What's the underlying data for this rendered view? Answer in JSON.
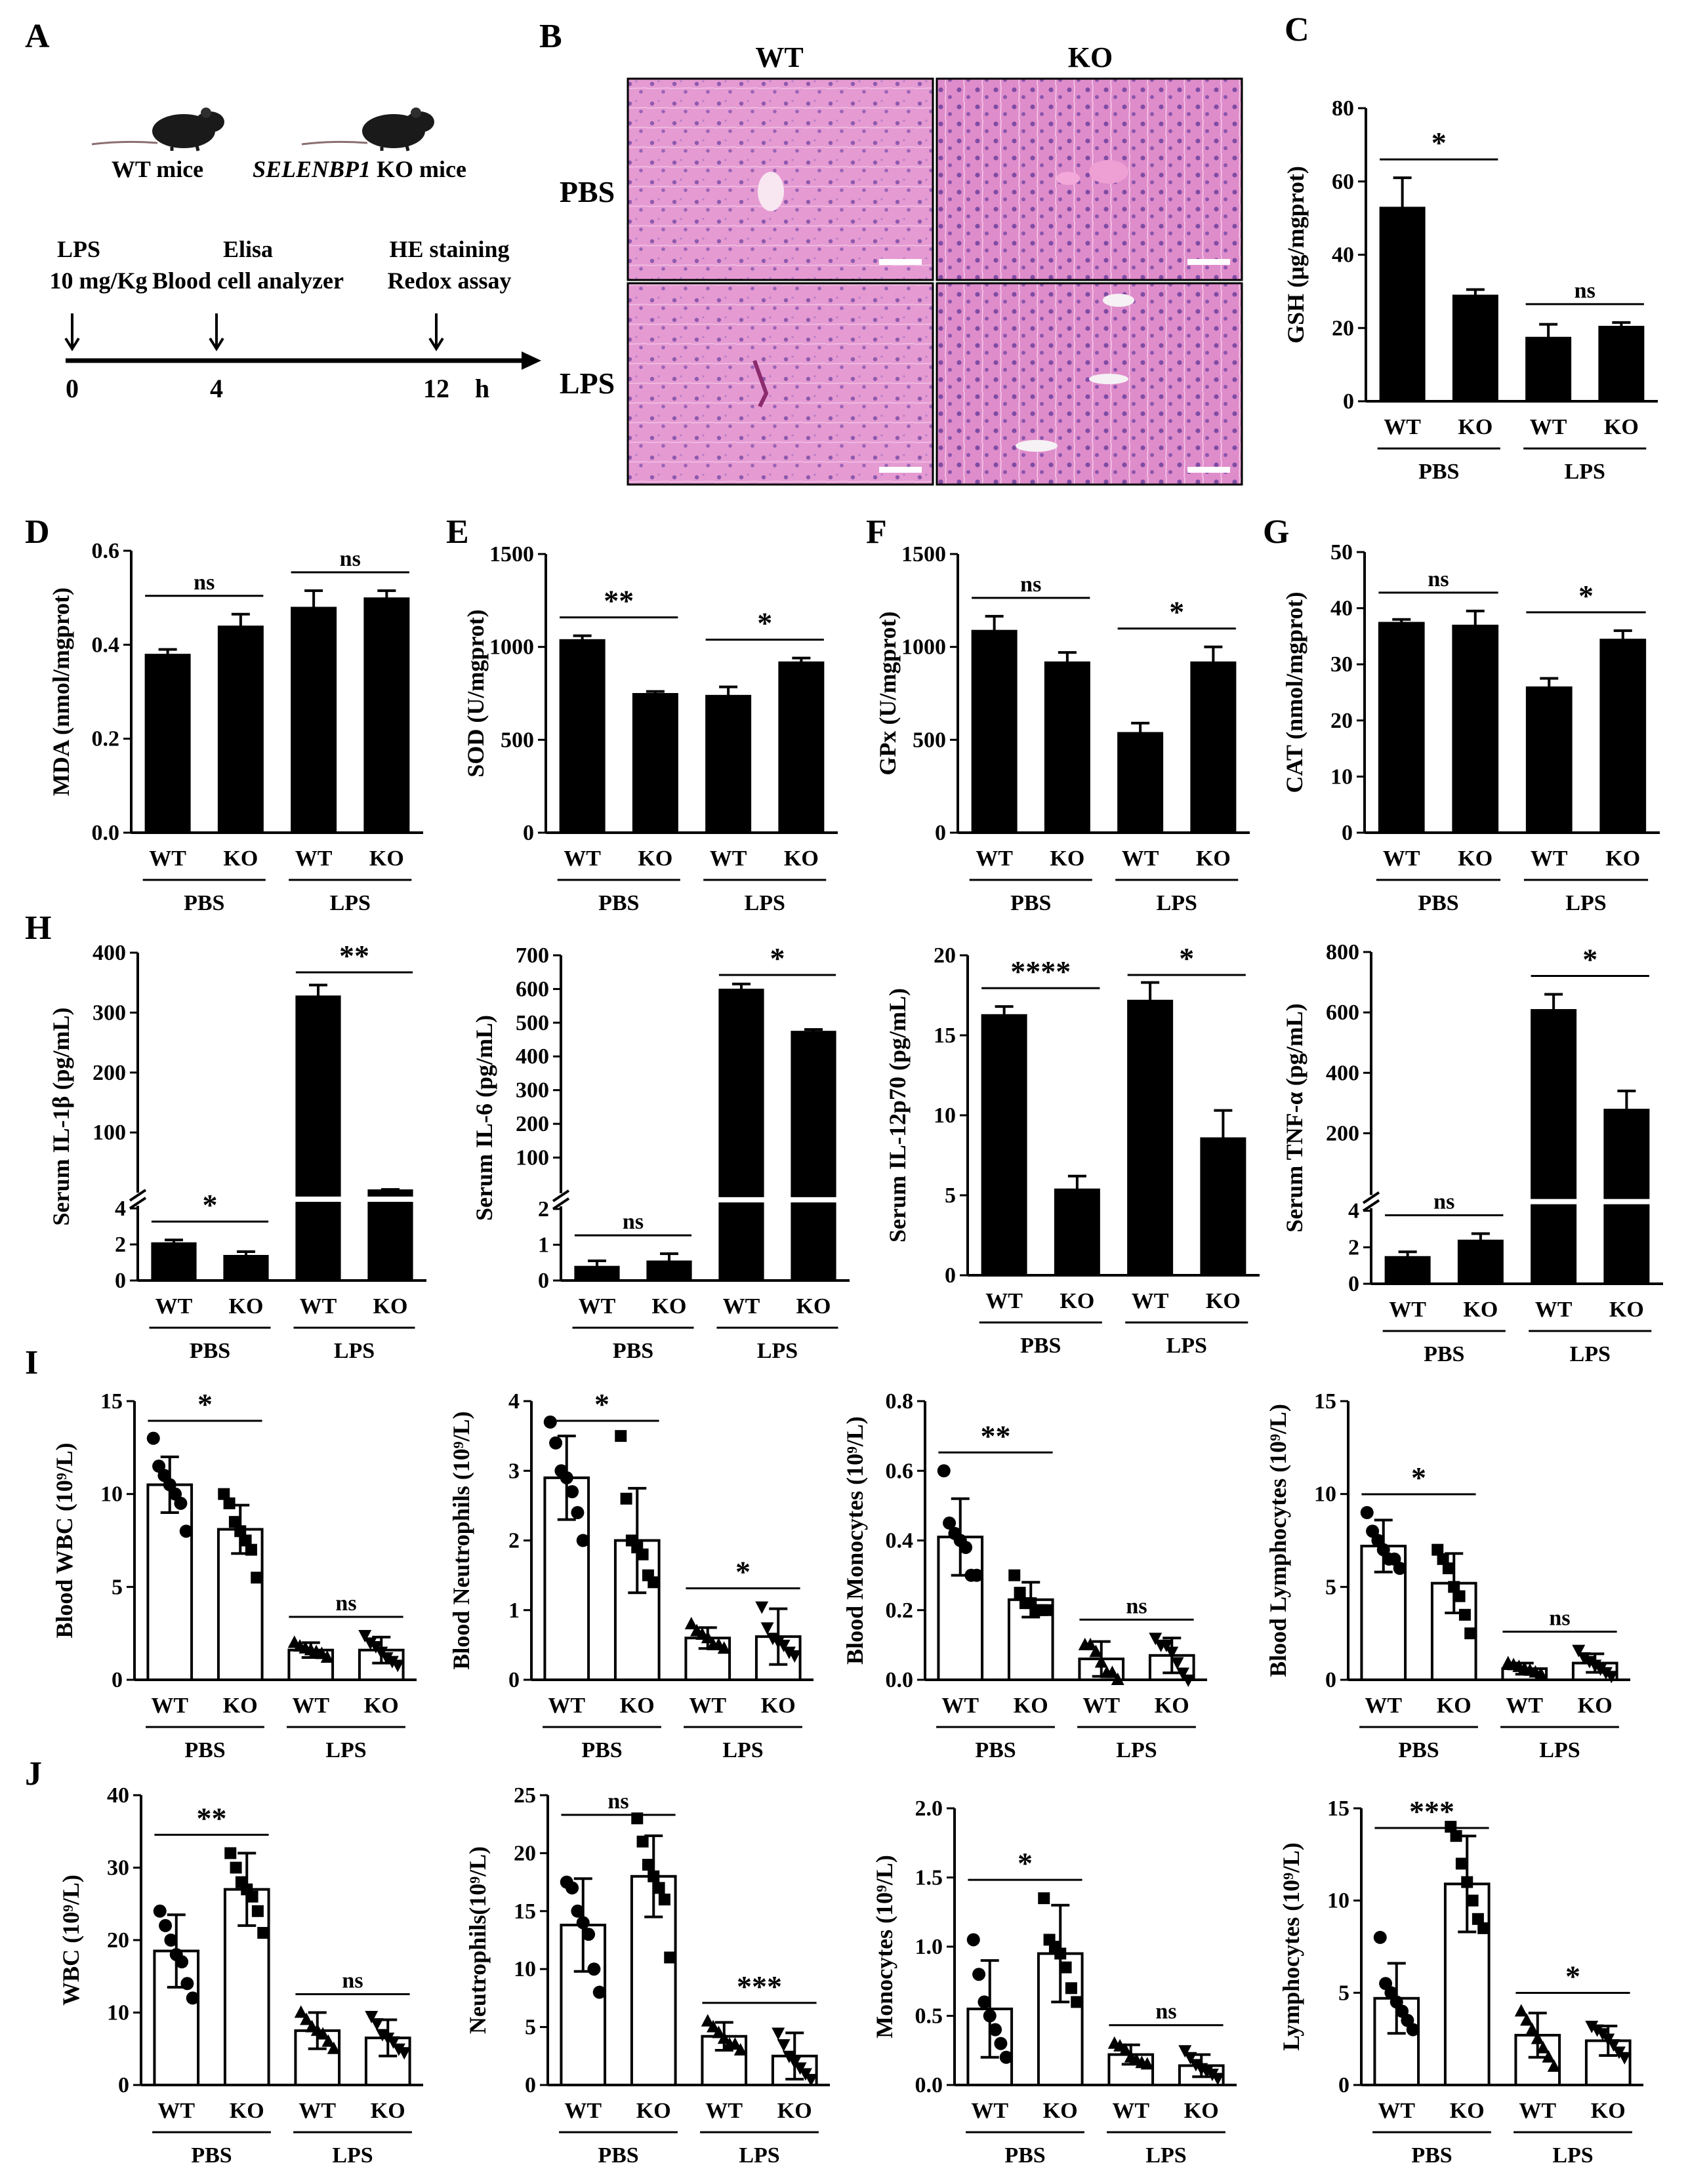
{
  "panel_letters": {
    "A": "A",
    "B": "B",
    "C": "C",
    "D": "D",
    "E": "E",
    "F": "F",
    "G": "G",
    "H": "H",
    "I": "I",
    "J": "J"
  },
  "panel_a": {
    "wt_mice": "WT mice",
    "ko_gene": "SELENBP1",
    "ko_suffix": " KO mice",
    "ev0_line1": "LPS",
    "ev0_line2": "10 mg/Kg",
    "ev4_line1": "Elisa",
    "ev4_line2": "Blood cell analyzer",
    "ev12_line1": "HE staining",
    "ev12_line2": "Redox assay",
    "tick_0": "0",
    "tick_4": "4",
    "tick_12": "12",
    "unit": "h"
  },
  "panel_b": {
    "col_wt": "WT",
    "col_ko": "KO",
    "row_pbs": "PBS",
    "row_lps": "LPS"
  },
  "chart_data": [
    {
      "id": "C",
      "type": "bar",
      "ylabel": "GSH (μg/mgprot)",
      "ylim": [
        0,
        80
      ],
      "yticks": [
        0,
        20,
        40,
        60,
        80
      ],
      "ytick_labels": [
        "0",
        "20",
        "40",
        "60",
        "80"
      ],
      "categories": [
        "WT",
        "KO",
        "WT",
        "KO"
      ],
      "groups": [
        "PBS",
        "LPS"
      ],
      "values": [
        53,
        29,
        17.5,
        20.5
      ],
      "errors": [
        8,
        1.5,
        3.5,
        1
      ],
      "annotations": [
        {
          "bars": [
            0,
            1
          ],
          "label": "*"
        },
        {
          "bars": [
            2,
            3
          ],
          "label": "ns"
        }
      ]
    },
    {
      "id": "D",
      "type": "bar",
      "ylabel": "MDA (nmol/mgprot)",
      "ylim": [
        0,
        0.6
      ],
      "yticks": [
        0,
        0.2,
        0.4,
        0.6
      ],
      "ytick_labels": [
        "0.0",
        "0.2",
        "0.4",
        "0.6"
      ],
      "categories": [
        "WT",
        "KO",
        "WT",
        "KO"
      ],
      "groups": [
        "PBS",
        "LPS"
      ],
      "values": [
        0.38,
        0.44,
        0.48,
        0.5
      ],
      "errors": [
        0.01,
        0.025,
        0.035,
        0.015
      ],
      "annotations": [
        {
          "bars": [
            0,
            1
          ],
          "label": "ns"
        },
        {
          "bars": [
            2,
            3
          ],
          "label": "ns"
        }
      ]
    },
    {
      "id": "E",
      "type": "bar",
      "ylabel": "SOD (U/mgprot)",
      "ylim": [
        0,
        1500
      ],
      "yticks": [
        0,
        500,
        1000,
        1500
      ],
      "ytick_labels": [
        "0",
        "500",
        "1000",
        "1500"
      ],
      "categories": [
        "WT",
        "KO",
        "WT",
        "KO"
      ],
      "groups": [
        "PBS",
        "LPS"
      ],
      "values": [
        1040,
        750,
        740,
        920
      ],
      "errors": [
        20,
        10,
        45,
        20
      ],
      "annotations": [
        {
          "bars": [
            0,
            1
          ],
          "label": "**"
        },
        {
          "bars": [
            2,
            3
          ],
          "label": "*"
        }
      ]
    },
    {
      "id": "F",
      "type": "bar",
      "ylabel": "GPx (U/mgprot)",
      "ylim": [
        0,
        1500
      ],
      "yticks": [
        0,
        500,
        1000,
        1500
      ],
      "ytick_labels": [
        "0",
        "500",
        "1000",
        "1500"
      ],
      "categories": [
        "WT",
        "KO",
        "WT",
        "KO"
      ],
      "groups": [
        "PBS",
        "LPS"
      ],
      "values": [
        1090,
        920,
        540,
        920
      ],
      "errors": [
        75,
        50,
        50,
        80
      ],
      "annotations": [
        {
          "bars": [
            0,
            1
          ],
          "label": "ns"
        },
        {
          "bars": [
            2,
            3
          ],
          "label": "*"
        }
      ]
    },
    {
      "id": "G",
      "type": "bar",
      "ylabel": "CAT (nmol/mgprot)",
      "ylim": [
        0,
        50
      ],
      "yticks": [
        0,
        10,
        20,
        30,
        40,
        50
      ],
      "ytick_labels": [
        "0",
        "10",
        "20",
        "30",
        "40",
        "50"
      ],
      "categories": [
        "WT",
        "KO",
        "WT",
        "KO"
      ],
      "groups": [
        "PBS",
        "LPS"
      ],
      "values": [
        37.5,
        37,
        26,
        34.5
      ],
      "errors": [
        0.5,
        2.5,
        1.5,
        1.5
      ],
      "annotations": [
        {
          "bars": [
            0,
            1
          ],
          "label": "ns"
        },
        {
          "bars": [
            2,
            3
          ],
          "label": "*"
        }
      ]
    },
    {
      "id": "H1",
      "type": "bar",
      "axis_break": true,
      "ylabel": "Serum IL-1β (pg/mL)",
      "low_range": [
        0,
        4
      ],
      "low_ticks": [
        0,
        2,
        4
      ],
      "high_range": [
        4,
        400
      ],
      "high_ticks": [
        100,
        200,
        300,
        400
      ],
      "categories": [
        "WT",
        "KO",
        "WT",
        "KO"
      ],
      "groups": [
        "PBS",
        "LPS"
      ],
      "values": [
        2.1,
        1.4,
        328,
        4.5
      ],
      "errors": [
        0.15,
        0.2,
        18,
        0.5
      ],
      "annotations": [
        {
          "bars": [
            0,
            1
          ],
          "label": "*"
        },
        {
          "bars": [
            2,
            3
          ],
          "label": "**"
        }
      ]
    },
    {
      "id": "H2",
      "type": "bar",
      "axis_break": true,
      "ylabel": "Serum IL-6 (pg/mL)",
      "low_range": [
        0,
        2
      ],
      "low_ticks": [
        0,
        1,
        2
      ],
      "high_range": [
        2,
        700
      ],
      "high_ticks": [
        100,
        200,
        300,
        400,
        500,
        600,
        700
      ],
      "categories": [
        "WT",
        "KO",
        "WT",
        "KO"
      ],
      "groups": [
        "PBS",
        "LPS"
      ],
      "values": [
        0.4,
        0.55,
        600,
        475
      ],
      "errors": [
        0.15,
        0.2,
        15,
        5
      ],
      "annotations": [
        {
          "bars": [
            0,
            1
          ],
          "label": "ns"
        },
        {
          "bars": [
            2,
            3
          ],
          "label": "*"
        }
      ]
    },
    {
      "id": "H3",
      "type": "bar",
      "ylabel": "Serum IL-12p70 (pg/mL)",
      "ylim": [
        0,
        20
      ],
      "yticks": [
        0,
        5,
        10,
        15,
        20
      ],
      "ytick_labels": [
        "0",
        "5",
        "10",
        "15",
        "20"
      ],
      "categories": [
        "WT",
        "KO",
        "WT",
        "KO"
      ],
      "groups": [
        "PBS",
        "LPS"
      ],
      "values": [
        16.3,
        5.4,
        17.2,
        8.6
      ],
      "errors": [
        0.5,
        0.8,
        1.1,
        1.7
      ],
      "annotations": [
        {
          "bars": [
            0,
            1
          ],
          "label": "****"
        },
        {
          "bars": [
            2,
            3
          ],
          "label": "*"
        }
      ]
    },
    {
      "id": "H4",
      "type": "bar",
      "axis_break": true,
      "ylabel": "Serum TNF-α (pg/mL)",
      "low_range": [
        0,
        4
      ],
      "low_ticks": [
        0,
        2,
        4
      ],
      "high_range": [
        4,
        800
      ],
      "high_ticks": [
        200,
        400,
        600,
        800
      ],
      "categories": [
        "WT",
        "KO",
        "WT",
        "KO"
      ],
      "groups": [
        "PBS",
        "LPS"
      ],
      "values": [
        1.5,
        2.4,
        610,
        280
      ],
      "errors": [
        0.25,
        0.35,
        50,
        60
      ],
      "annotations": [
        {
          "bars": [
            0,
            1
          ],
          "label": "ns"
        },
        {
          "bars": [
            2,
            3
          ],
          "label": "*"
        }
      ]
    },
    {
      "id": "I1",
      "type": "bar_scatter",
      "ylabel": "Blood WBC (10⁹/L)",
      "ylim": [
        0,
        15
      ],
      "yticks": [
        0,
        5,
        10,
        15
      ],
      "ytick_labels": [
        "0",
        "5",
        "10",
        "15"
      ],
      "categories": [
        "WT",
        "KO",
        "WT",
        "KO"
      ],
      "groups": [
        "PBS",
        "LPS"
      ],
      "values": [
        10.5,
        8.1,
        1.6,
        1.6
      ],
      "errors": [
        1.5,
        1.3,
        0.4,
        0.7
      ],
      "points": [
        [
          13,
          11.5,
          11,
          10.5,
          10,
          9.5,
          8
        ],
        [
          10,
          9.5,
          8.5,
          8,
          7.5,
          7,
          5.5
        ],
        [
          2,
          1.8,
          1.7,
          1.6,
          1.5,
          1.4,
          1.2
        ],
        [
          2.4,
          2,
          1.8,
          1.5,
          1.2,
          1,
          0.8
        ]
      ],
      "annotations": [
        {
          "bars": [
            0,
            1
          ],
          "label": "*"
        },
        {
          "bars": [
            2,
            3
          ],
          "label": "ns"
        }
      ]
    },
    {
      "id": "I2",
      "type": "bar_scatter",
      "ylabel": "Blood Neutrophils (10⁹/L)",
      "ylim": [
        0,
        4
      ],
      "yticks": [
        0,
        1,
        2,
        3,
        4
      ],
      "ytick_labels": [
        "0",
        "1",
        "2",
        "3",
        "4"
      ],
      "categories": [
        "WT",
        "KO",
        "WT",
        "KO"
      ],
      "groups": [
        "PBS",
        "LPS"
      ],
      "values": [
        2.9,
        2.0,
        0.6,
        0.62
      ],
      "errors": [
        0.6,
        0.75,
        0.15,
        0.4
      ],
      "points": [
        [
          3.7,
          3.4,
          3.0,
          2.9,
          2.7,
          2.4,
          2.0
        ],
        [
          3.5,
          2.6,
          2.0,
          1.9,
          1.8,
          1.5,
          1.4
        ],
        [
          0.8,
          0.7,
          0.65,
          0.6,
          0.5,
          0.5,
          0.45
        ],
        [
          1.05,
          0.75,
          0.6,
          0.55,
          0.5,
          0.4,
          0.35
        ]
      ],
      "annotations": [
        {
          "bars": [
            0,
            1
          ],
          "label": "*"
        },
        {
          "bars": [
            2,
            3
          ],
          "label": "*"
        }
      ]
    },
    {
      "id": "I3",
      "type": "bar_scatter",
      "ylabel": "Blood Monocytes (10⁹/L)",
      "ylim": [
        0,
        0.8
      ],
      "yticks": [
        0,
        0.2,
        0.4,
        0.6,
        0.8
      ],
      "ytick_labels": [
        "0.0",
        "0.2",
        "0.4",
        "0.6",
        "0.8"
      ],
      "categories": [
        "WT",
        "KO",
        "WT",
        "KO"
      ],
      "groups": [
        "PBS",
        "LPS"
      ],
      "values": [
        0.41,
        0.23,
        0.06,
        0.07
      ],
      "errors": [
        0.11,
        0.05,
        0.05,
        0.05
      ],
      "points": [
        [
          0.6,
          0.45,
          0.42,
          0.4,
          0.38,
          0.3,
          0.3
        ],
        [
          0.3,
          0.25,
          0.22,
          0.22,
          0.2,
          0.2,
          0.2
        ],
        [
          0.1,
          0.1,
          0.08,
          0.05,
          0.02,
          0.02,
          0.0
        ],
        [
          0.12,
          0.1,
          0.1,
          0.08,
          0.05,
          0.02,
          0.0
        ]
      ],
      "annotations": [
        {
          "bars": [
            0,
            1
          ],
          "label": "**"
        },
        {
          "bars": [
            2,
            3
          ],
          "label": "ns"
        }
      ]
    },
    {
      "id": "I4",
      "type": "bar_scatter",
      "ylabel": "Blood Lymphocytes (10⁹/L)",
      "ylim": [
        0,
        15
      ],
      "yticks": [
        0,
        5,
        10,
        15
      ],
      "ytick_labels": [
        "0",
        "5",
        "10",
        "15"
      ],
      "categories": [
        "WT",
        "KO",
        "WT",
        "KO"
      ],
      "groups": [
        "PBS",
        "LPS"
      ],
      "values": [
        7.2,
        5.2,
        0.6,
        0.9
      ],
      "errors": [
        1.4,
        1.6,
        0.3,
        0.5
      ],
      "points": [
        [
          9,
          8,
          7.5,
          7,
          6.5,
          6.5,
          6
        ],
        [
          7,
          6.5,
          6,
          5,
          4.5,
          3.5,
          2.5
        ],
        [
          0.9,
          0.8,
          0.7,
          0.6,
          0.5,
          0.4,
          0.3
        ],
        [
          1.6,
          1.2,
          1,
          0.8,
          0.6,
          0.4,
          0.2
        ]
      ],
      "annotations": [
        {
          "bars": [
            0,
            1
          ],
          "label": "*"
        },
        {
          "bars": [
            2,
            3
          ],
          "label": "ns"
        }
      ]
    },
    {
      "id": "J1",
      "type": "bar_scatter",
      "ylabel": "WBC (10⁹/L)",
      "ylim": [
        0,
        40
      ],
      "yticks": [
        0,
        10,
        20,
        30,
        40
      ],
      "ytick_labels": [
        "0",
        "10",
        "20",
        "30",
        "40"
      ],
      "categories": [
        "WT",
        "KO",
        "WT",
        "KO"
      ],
      "groups": [
        "PBS",
        "LPS"
      ],
      "values": [
        18.5,
        27,
        7.5,
        6.5
      ],
      "errors": [
        5,
        5,
        2.5,
        2.5
      ],
      "points": [
        [
          24,
          22,
          20,
          18,
          17,
          14,
          12
        ],
        [
          32,
          30,
          28,
          27,
          26,
          24,
          21
        ],
        [
          10,
          9,
          8,
          7.5,
          7,
          6,
          5
        ],
        [
          9.5,
          8.5,
          7,
          6.5,
          6,
          5,
          4.5
        ]
      ],
      "annotations": [
        {
          "bars": [
            0,
            1
          ],
          "label": "**"
        },
        {
          "bars": [
            2,
            3
          ],
          "label": "ns"
        }
      ]
    },
    {
      "id": "J2",
      "type": "bar_scatter",
      "ylabel": "Neutrophils(10⁹/L)",
      "ylim": [
        0,
        25
      ],
      "yticks": [
        0,
        5,
        10,
        15,
        20,
        25
      ],
      "ytick_labels": [
        "0",
        "5",
        "10",
        "15",
        "20",
        "25"
      ],
      "categories": [
        "WT",
        "KO",
        "WT",
        "KO"
      ],
      "groups": [
        "PBS",
        "LPS"
      ],
      "values": [
        13.8,
        18,
        4.2,
        2.5
      ],
      "errors": [
        4,
        3.5,
        1.2,
        2
      ],
      "points": [
        [
          17.5,
          17,
          15,
          14,
          13,
          10,
          8
        ],
        [
          23,
          21,
          19,
          18,
          17,
          16,
          11
        ],
        [
          5.5,
          5,
          4.5,
          4,
          3.5,
          3.5,
          3
        ],
        [
          4.5,
          3.5,
          2.5,
          2,
          1.5,
          1,
          0.5
        ]
      ],
      "annotations": [
        {
          "bars": [
            0,
            1
          ],
          "label": "ns"
        },
        {
          "bars": [
            2,
            3
          ],
          "label": "***"
        }
      ]
    },
    {
      "id": "J3",
      "type": "bar_scatter",
      "ylabel": "Monocytes (10⁹/L)",
      "ylim": [
        0,
        2
      ],
      "yticks": [
        0,
        0.5,
        1,
        1.5,
        2
      ],
      "ytick_labels": [
        "0.0",
        "0.5",
        "1.0",
        "1.5",
        "2.0"
      ],
      "categories": [
        "WT",
        "KO",
        "WT",
        "KO"
      ],
      "groups": [
        "PBS",
        "LPS"
      ],
      "values": [
        0.55,
        0.95,
        0.22,
        0.14
      ],
      "errors": [
        0.35,
        0.35,
        0.07,
        0.08
      ],
      "points": [
        [
          1.05,
          0.8,
          0.6,
          0.5,
          0.4,
          0.3,
          0.2
        ],
        [
          1.35,
          1.05,
          1.0,
          0.95,
          0.85,
          0.7,
          0.6
        ],
        [
          0.3,
          0.28,
          0.25,
          0.2,
          0.18,
          0.16,
          0.15
        ],
        [
          0.25,
          0.2,
          0.15,
          0.12,
          0.1,
          0.08,
          0.05
        ]
      ],
      "annotations": [
        {
          "bars": [
            0,
            1
          ],
          "label": "*"
        },
        {
          "bars": [
            2,
            3
          ],
          "label": "ns"
        }
      ]
    },
    {
      "id": "J4",
      "type": "bar_scatter",
      "ylabel": "Lymphocytes (10⁹/L)",
      "ylim": [
        0,
        15
      ],
      "yticks": [
        0,
        5,
        10,
        15
      ],
      "ytick_labels": [
        "0",
        "5",
        "10",
        "15"
      ],
      "categories": [
        "WT",
        "KO",
        "WT",
        "KO"
      ],
      "groups": [
        "PBS",
        "LPS"
      ],
      "values": [
        4.7,
        10.9,
        2.7,
        2.4
      ],
      "errors": [
        1.9,
        2.6,
        1.2,
        0.8
      ],
      "points": [
        [
          8,
          5.5,
          5,
          4.5,
          4,
          3.5,
          3
        ],
        [
          14,
          13.5,
          12,
          11,
          10,
          9,
          8.5
        ],
        [
          4,
          3.5,
          3,
          2.5,
          2,
          1.5,
          1
        ],
        [
          3.2,
          3,
          2.8,
          2.5,
          2.2,
          1.8,
          1.5
        ]
      ],
      "annotations": [
        {
          "bars": [
            0,
            1
          ],
          "label": "***"
        },
        {
          "bars": [
            2,
            3
          ],
          "label": "*"
        }
      ]
    }
  ]
}
